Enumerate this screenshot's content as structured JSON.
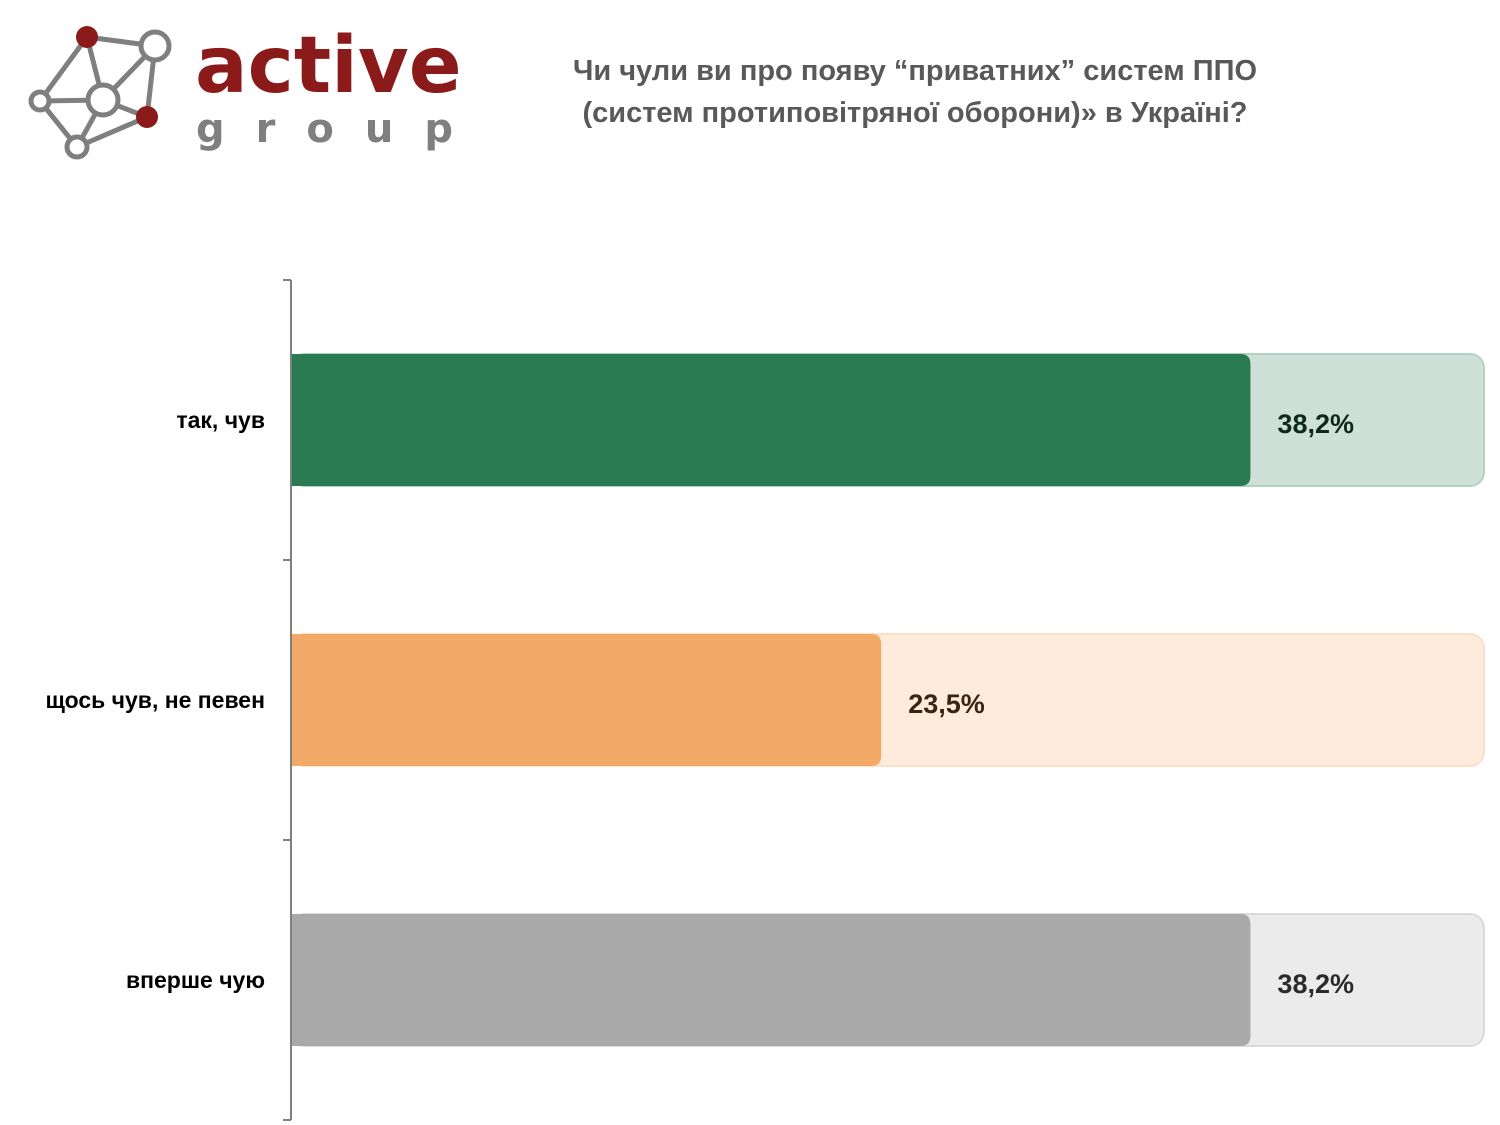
{
  "logo": {
    "word1": "active",
    "word2": "group",
    "brand_color": "#8b1a1a",
    "node_color": "#7f7f7f"
  },
  "header": {
    "title_line1": "Чи чули ви про появу “приватних” систем ППО",
    "title_line2": "(систем протиповітряної оборони)» в Україні?"
  },
  "chart_data": {
    "type": "bar",
    "orientation": "horizontal",
    "categories": [
      "так, чув",
      "щось чув, не певен",
      "вперше чую"
    ],
    "values": [
      38.2,
      23.5,
      38.2
    ],
    "value_labels": [
      "38,2%",
      "23,5%",
      "38,2%"
    ],
    "xlim": [
      0,
      47.5
    ],
    "bar_colors": [
      "#2a7a52",
      "#f3aa69",
      "#a9a9a9"
    ],
    "track_colors": [
      "#cee0d7",
      "#fdebdb",
      "#ebebeb"
    ],
    "track_border_colors": [
      "#b2d2c2",
      "#fbe0c6",
      "#dadada"
    ],
    "label_colors": [
      "#0d2a1c",
      "#3b2410",
      "#2b2b2b"
    ],
    "axis_color": "#7f7f7f",
    "grid": false,
    "legend": false
  }
}
